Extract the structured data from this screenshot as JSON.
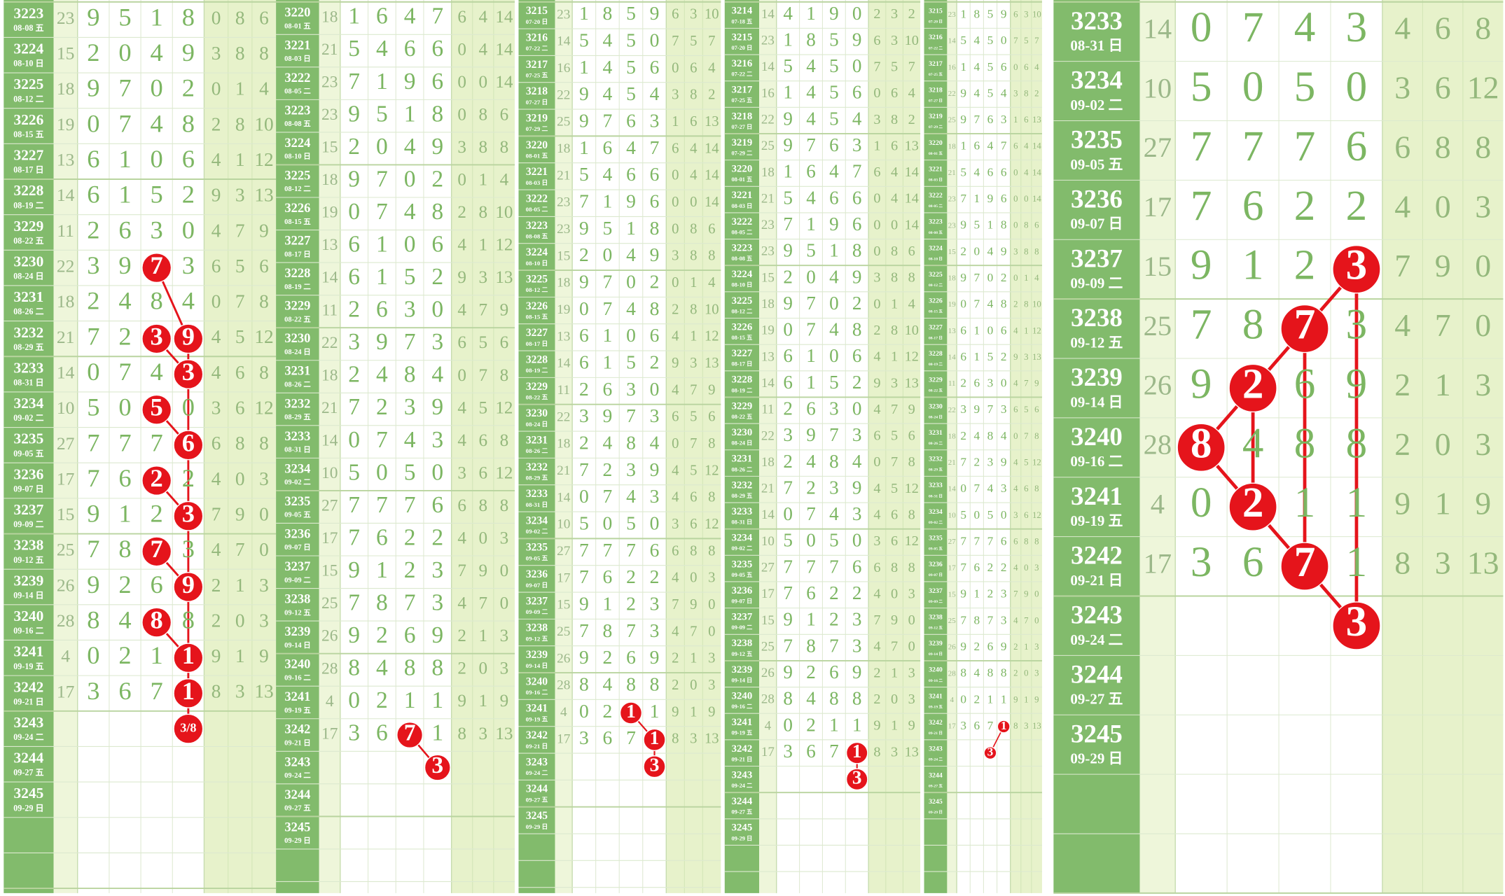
{
  "draws": [
    {
      "issue": "3214",
      "date": "07-18 五",
      "sum": 14,
      "digits": [
        4,
        1,
        9,
        0
      ],
      "stats": [
        2,
        3,
        2
      ]
    },
    {
      "issue": "3215",
      "date": "07-20 日",
      "sum": 23,
      "digits": [
        1,
        8,
        5,
        9
      ],
      "stats": [
        6,
        3,
        10
      ]
    },
    {
      "issue": "3216",
      "date": "07-22 二",
      "sum": 14,
      "digits": [
        5,
        4,
        5,
        0
      ],
      "stats": [
        7,
        5,
        7
      ]
    },
    {
      "issue": "3217",
      "date": "07-25 五",
      "sum": 16,
      "digits": [
        1,
        4,
        5,
        6
      ],
      "stats": [
        0,
        6,
        4
      ]
    },
    {
      "issue": "3218",
      "date": "07-27 日",
      "sum": 22,
      "digits": [
        9,
        4,
        5,
        4
      ],
      "stats": [
        3,
        8,
        2
      ]
    },
    {
      "issue": "3219",
      "date": "07-29 二",
      "sum": 25,
      "digits": [
        9,
        7,
        6,
        3
      ],
      "stats": [
        1,
        6,
        13
      ]
    },
    {
      "issue": "3220",
      "date": "08-01 五",
      "sum": 18,
      "digits": [
        1,
        6,
        4,
        7
      ],
      "stats": [
        6,
        4,
        14
      ]
    },
    {
      "issue": "3221",
      "date": "08-03 日",
      "sum": 21,
      "digits": [
        5,
        4,
        6,
        6
      ],
      "stats": [
        0,
        4,
        14
      ]
    },
    {
      "issue": "3222",
      "date": "08-05 二",
      "sum": 23,
      "digits": [
        7,
        1,
        9,
        6
      ],
      "stats": [
        0,
        0,
        14
      ]
    },
    {
      "issue": "3223",
      "date": "08-08 五",
      "sum": 23,
      "digits": [
        9,
        5,
        1,
        8
      ],
      "stats": [
        0,
        8,
        6
      ]
    },
    {
      "issue": "3224",
      "date": "08-10 日",
      "sum": 15,
      "digits": [
        2,
        0,
        4,
        9
      ],
      "stats": [
        3,
        8,
        8
      ]
    },
    {
      "issue": "3225",
      "date": "08-12 二",
      "sum": 18,
      "digits": [
        9,
        7,
        0,
        2
      ],
      "stats": [
        0,
        1,
        4
      ]
    },
    {
      "issue": "3226",
      "date": "08-15 五",
      "sum": 19,
      "digits": [
        0,
        7,
        4,
        8
      ],
      "stats": [
        2,
        8,
        10
      ]
    },
    {
      "issue": "3227",
      "date": "08-17 日",
      "sum": 13,
      "digits": [
        6,
        1,
        0,
        6
      ],
      "stats": [
        4,
        1,
        12
      ]
    },
    {
      "issue": "3228",
      "date": "08-19 二",
      "sum": 14,
      "digits": [
        6,
        1,
        5,
        2
      ],
      "stats": [
        9,
        3,
        13
      ]
    },
    {
      "issue": "3229",
      "date": "08-22 五",
      "sum": 11,
      "digits": [
        2,
        6,
        3,
        0
      ],
      "stats": [
        4,
        7,
        9
      ]
    },
    {
      "issue": "3230",
      "date": "08-24 日",
      "sum": 22,
      "digits": [
        3,
        9,
        7,
        3
      ],
      "stats": [
        6,
        5,
        6
      ]
    },
    {
      "issue": "3231",
      "date": "08-26 二",
      "sum": 18,
      "digits": [
        2,
        4,
        8,
        4
      ],
      "stats": [
        0,
        7,
        8
      ]
    },
    {
      "issue": "3232",
      "date": "08-29 五",
      "sum": 21,
      "digits": [
        7,
        2,
        3,
        9
      ],
      "stats": [
        4,
        5,
        12
      ]
    },
    {
      "issue": "3233",
      "date": "08-31 日",
      "sum": 14,
      "digits": [
        0,
        7,
        4,
        3
      ],
      "stats": [
        4,
        6,
        8
      ]
    },
    {
      "issue": "3234",
      "date": "09-02 二",
      "sum": 10,
      "digits": [
        5,
        0,
        5,
        0
      ],
      "stats": [
        3,
        6,
        12
      ]
    },
    {
      "issue": "3235",
      "date": "09-05 五",
      "sum": 27,
      "digits": [
        7,
        7,
        7,
        6
      ],
      "stats": [
        6,
        8,
        8
      ]
    },
    {
      "issue": "3236",
      "date": "09-07 日",
      "sum": 17,
      "digits": [
        7,
        6,
        2,
        2
      ],
      "stats": [
        4,
        0,
        3
      ]
    },
    {
      "issue": "3237",
      "date": "09-09 二",
      "sum": 15,
      "digits": [
        9,
        1,
        2,
        3
      ],
      "stats": [
        7,
        9,
        0
      ]
    },
    {
      "issue": "3238",
      "date": "09-12 五",
      "sum": 25,
      "digits": [
        7,
        8,
        7,
        3
      ],
      "stats": [
        4,
        7,
        0
      ]
    },
    {
      "issue": "3239",
      "date": "09-14 日",
      "sum": 26,
      "digits": [
        9,
        2,
        6,
        9
      ],
      "stats": [
        2,
        1,
        3
      ]
    },
    {
      "issue": "3240",
      "date": "09-16 二",
      "sum": 28,
      "digits": [
        8,
        4,
        8,
        8
      ],
      "stats": [
        2,
        0,
        3
      ]
    },
    {
      "issue": "3241",
      "date": "09-19 五",
      "sum": 4,
      "digits": [
        0,
        2,
        1,
        1
      ],
      "stats": [
        9,
        1,
        9
      ]
    },
    {
      "issue": "3242",
      "date": "09-21 日",
      "sum": 17,
      "digits": [
        3,
        6,
        7,
        1
      ],
      "stats": [
        8,
        3,
        13
      ]
    },
    {
      "issue": "3243",
      "date": "09-24 二"
    },
    {
      "issue": "3244",
      "date": "09-27 五"
    },
    {
      "issue": "3245",
      "date": "09-29 日"
    }
  ],
  "predictions": [
    "3/8",
    "3",
    "3",
    "3",
    "3",
    "3"
  ]
}
